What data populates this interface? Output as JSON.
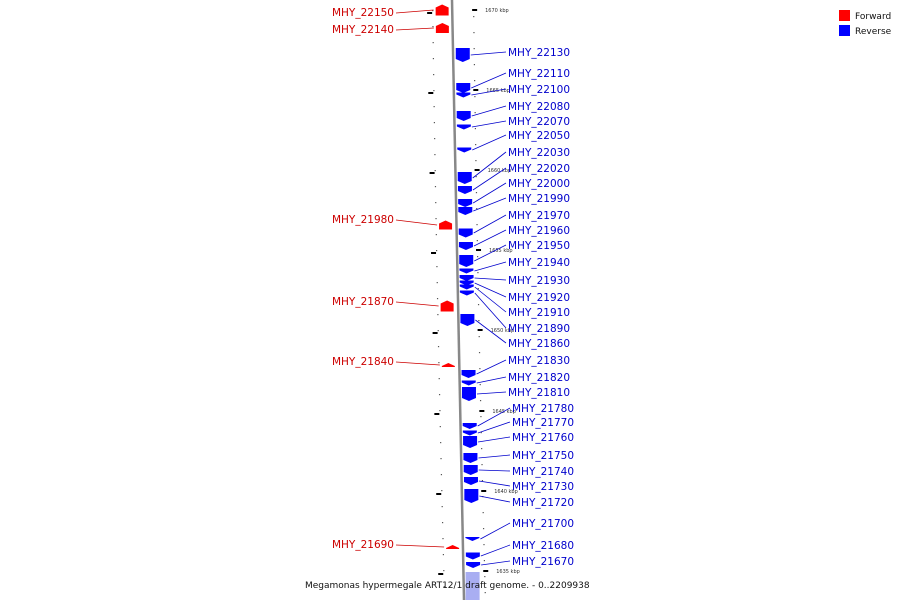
{
  "caption": "Megamonas hypermegale ART12/1 draft genome. - 0..2209938",
  "legend": [
    {
      "label": "Forward",
      "color": "#ff0000"
    },
    {
      "label": "Reverse",
      "color": "#0000ff"
    }
  ],
  "colors": {
    "forward": "#ff0000",
    "forward_label": "#cc0000",
    "reverse": "#0000ff",
    "reverse_label": "#0000cc",
    "backbone": "#888888"
  },
  "ticks": [
    "1670 kbp",
    "1665 kbp",
    "1660 kbp",
    "1655 kbp",
    "1650 kbp",
    "1645 kbp",
    "1640 kbp",
    "1635 kbp"
  ],
  "forward_genes": [
    "MHY_22150",
    "MHY_22140",
    "MHY_21980",
    "MHY_21870",
    "MHY_21840",
    "MHY_21690"
  ],
  "reverse_genes": [
    "MHY_22130",
    "MHY_22110",
    "MHY_22100",
    "MHY_22080",
    "MHY_22070",
    "MHY_22050",
    "MHY_22030",
    "MHY_22020",
    "MHY_22000",
    "MHY_21990",
    "MHY_21970",
    "MHY_21960",
    "MHY_21950",
    "MHY_21940",
    "MHY_21930",
    "MHY_21920",
    "MHY_21910",
    "MHY_21890",
    "MHY_21860",
    "MHY_21830",
    "MHY_21820",
    "MHY_21810",
    "MHY_21780",
    "MHY_21770",
    "MHY_21760",
    "MHY_21750",
    "MHY_21740",
    "MHY_21730",
    "MHY_21720",
    "MHY_21700",
    "MHY_21680",
    "MHY_21670"
  ]
}
